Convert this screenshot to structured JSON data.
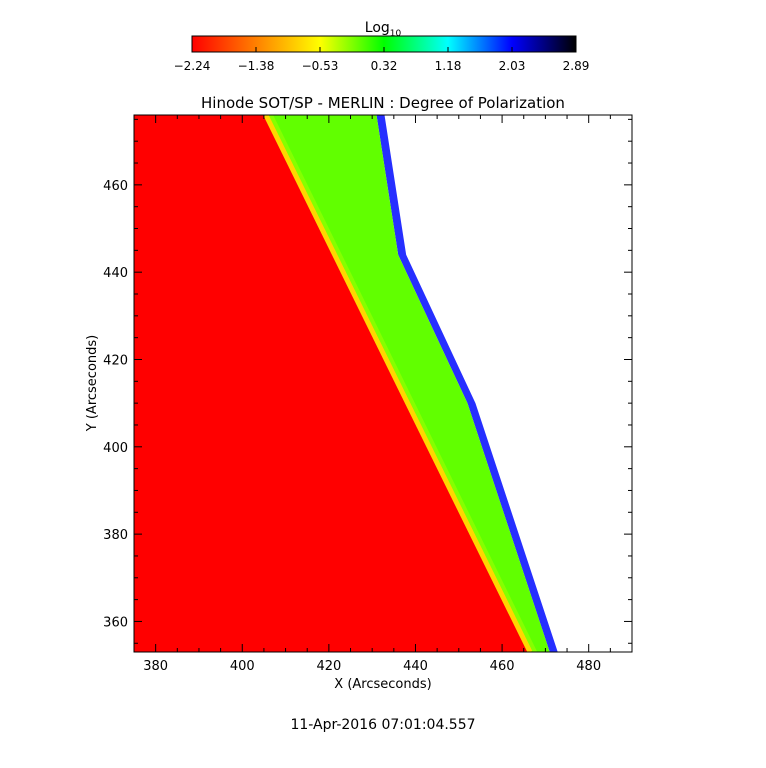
{
  "chart_data": {
    "type": "heatmap",
    "title": "Hinode SOT/SP - MERLIN : Degree of Polarization",
    "xlabel": "X (Arcseconds)",
    "ylabel": "Y (Arcseconds)",
    "xlim": [
      375,
      490
    ],
    "ylim": [
      353,
      476
    ],
    "xticks": [
      380,
      400,
      420,
      440,
      460,
      480
    ],
    "yticks": [
      360,
      380,
      400,
      420,
      440,
      460
    ],
    "colorbar": {
      "label_main": "Log",
      "label_sub": "10",
      "range": [
        -2.24,
        2.89
      ],
      "tick_labels": [
        "-2.24",
        "-1.38",
        "-0.53",
        "0.32",
        "1.18",
        "2.03",
        "2.89"
      ],
      "colors": [
        "#ff0000",
        "#ff8000",
        "#ffff00",
        "#00ff00",
        "#00ffff",
        "#0000ff",
        "#000000"
      ]
    },
    "regions": {
      "background_value": -2.24,
      "limb_value": -0.8,
      "offlimb_value": 0.0,
      "edge_value": 2.0,
      "limb_line_x": [
        [
          405,
          476
        ],
        [
          466,
          353
        ]
      ],
      "data_edge_x": [
        [
          431,
          476
        ],
        [
          436,
          444
        ],
        [
          452,
          410
        ],
        [
          471,
          353
        ]
      ]
    },
    "timestamp": "11-Apr-2016 07:01:04.557"
  }
}
